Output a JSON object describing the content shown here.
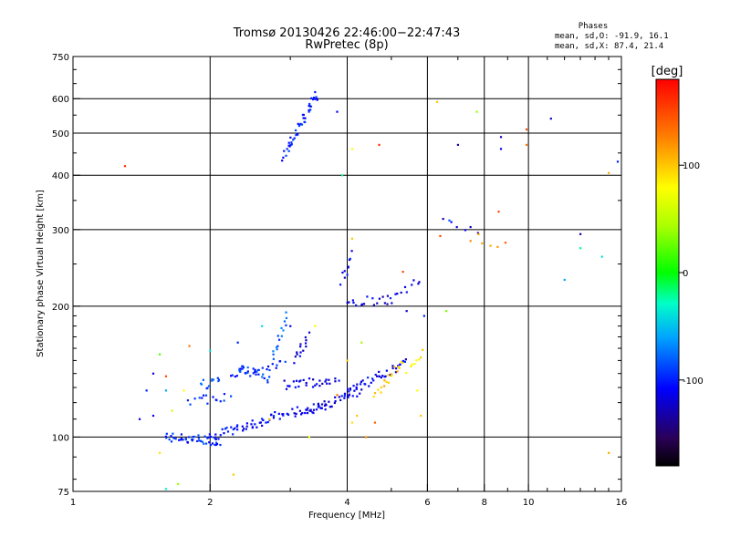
{
  "chart_data": {
    "type": "scatter",
    "title": "Tromsø 20130426 22:46:00−22:47:43",
    "subtitle": "RwPretec (8p)",
    "xlabel": "Frequency [MHz]",
    "ylabel": "Stationary phase Virtual Height [km]",
    "x_scale": "log",
    "y_scale": "log",
    "xlim": [
      1,
      16
    ],
    "ylim": [
      75,
      750
    ],
    "x_ticks": [
      1,
      2,
      4,
      6,
      8,
      10,
      16
    ],
    "x_tick_labels": [
      "1",
      "2",
      "4",
      "6",
      "8",
      "10",
      "16"
    ],
    "y_ticks": [
      75,
      100,
      200,
      300,
      400,
      500,
      600,
      750
    ],
    "y_tick_labels": [
      "75",
      "100",
      "200",
      "300",
      "400",
      "500",
      "600",
      "750"
    ],
    "grid": true,
    "legend": {
      "heading": "Phases",
      "line1": "mean, sd,O:  -91.9, 16.1",
      "line2": "mean, sd,X:  87.4, 21.4"
    },
    "colorbar": {
      "label": "[deg]",
      "min": -180,
      "max": 180,
      "ticks": [
        100,
        0,
        -100
      ],
      "tick_labels": [
        "100",
        "0",
        "-100"
      ]
    },
    "traces": [
      {
        "x_start": 1.6,
        "x_end": 2.1,
        "y_start": 100,
        "y_end": 98,
        "phase": -95,
        "n": 45
      },
      {
        "x_start": 2.0,
        "x_end": 2.7,
        "y_start": 100,
        "y_end": 110,
        "phase": -105,
        "n": 40
      },
      {
        "x_start": 2.7,
        "x_end": 3.6,
        "y_start": 111,
        "y_end": 118,
        "phase": -110,
        "n": 35
      },
      {
        "x_start": 3.3,
        "x_end": 4.3,
        "y_start": 115,
        "y_end": 128,
        "phase": -115,
        "n": 35
      },
      {
        "x_start": 4.0,
        "x_end": 5.4,
        "y_start": 128,
        "y_end": 148,
        "phase": -110,
        "n": 40
      },
      {
        "x_start": 2.2,
        "x_end": 2.9,
        "y_start": 140,
        "y_end": 148,
        "phase": -100,
        "n": 25
      },
      {
        "x_start": 2.9,
        "x_end": 3.8,
        "y_start": 132,
        "y_end": 135,
        "phase": -115,
        "n": 30
      },
      {
        "x_start": 2.3,
        "x_end": 2.7,
        "y_start": 145,
        "y_end": 135,
        "phase": -90,
        "n": 20
      },
      {
        "x_start": 1.8,
        "x_end": 2.2,
        "y_start": 120,
        "y_end": 125,
        "phase": -95,
        "n": 15
      },
      {
        "x_start": 1.9,
        "x_end": 2.1,
        "y_start": 132,
        "y_end": 134,
        "phase": -85,
        "n": 12
      },
      {
        "x_start": 2.75,
        "x_end": 2.95,
        "y_start": 152,
        "y_end": 190,
        "phase": -80,
        "n": 15
      },
      {
        "x_start": 3.05,
        "x_end": 3.3,
        "y_start": 150,
        "y_end": 170,
        "phase": -115,
        "n": 14
      },
      {
        "x_start": 2.9,
        "x_end": 3.45,
        "y_start": 440,
        "y_end": 620,
        "phase": -100,
        "n": 45
      },
      {
        "x_start": 4.0,
        "x_end": 5.0,
        "y_start": 205,
        "y_end": 207,
        "phase": -115,
        "n": 18
      },
      {
        "x_start": 5.0,
        "x_end": 5.8,
        "y_start": 212,
        "y_end": 228,
        "phase": -110,
        "n": 10
      },
      {
        "x_start": 3.9,
        "x_end": 4.1,
        "y_start": 225,
        "y_end": 265,
        "phase": -110,
        "n": 10
      },
      {
        "x_start": 4.6,
        "x_end": 5.3,
        "y_start": 125,
        "y_end": 150,
        "phase": 100,
        "n": 18
      },
      {
        "x_start": 5.4,
        "x_end": 5.9,
        "y_start": 140,
        "y_end": 158,
        "phase": 85,
        "n": 8
      },
      {
        "x_start": 6.5,
        "x_end": 7.8,
        "y_start": 310,
        "y_end": 300,
        "phase": -120,
        "n": 6
      },
      {
        "x_start": 7.5,
        "x_end": 8.5,
        "y_start": 288,
        "y_end": 280,
        "phase": 110,
        "n": 5
      }
    ],
    "points": [
      {
        "x": 1.3,
        "y": 420,
        "phase": 160
      },
      {
        "x": 3.8,
        "y": 560,
        "phase": -110
      },
      {
        "x": 3.9,
        "y": 400,
        "phase": -20
      },
      {
        "x": 4.7,
        "y": 470,
        "phase": 160
      },
      {
        "x": 4.1,
        "y": 460,
        "phase": 80
      },
      {
        "x": 7.0,
        "y": 470,
        "phase": -130
      },
      {
        "x": 7.7,
        "y": 560,
        "phase": 40
      },
      {
        "x": 8.7,
        "y": 490,
        "phase": -130
      },
      {
        "x": 8.7,
        "y": 460,
        "phase": -110
      },
      {
        "x": 9.9,
        "y": 510,
        "phase": 150
      },
      {
        "x": 9.9,
        "y": 470,
        "phase": 130
      },
      {
        "x": 11.2,
        "y": 540,
        "phase": -120
      },
      {
        "x": 15.7,
        "y": 430,
        "phase": -100
      },
      {
        "x": 15.0,
        "y": 405,
        "phase": 110
      },
      {
        "x": 13.0,
        "y": 293,
        "phase": -130
      },
      {
        "x": 13.0,
        "y": 272,
        "phase": -20
      },
      {
        "x": 12.0,
        "y": 230,
        "phase": -60
      },
      {
        "x": 14.5,
        "y": 260,
        "phase": -40
      },
      {
        "x": 6.7,
        "y": 315,
        "phase": -80
      },
      {
        "x": 8.6,
        "y": 330,
        "phase": 150
      },
      {
        "x": 8.9,
        "y": 280,
        "phase": 140
      },
      {
        "x": 6.4,
        "y": 290,
        "phase": 150
      },
      {
        "x": 6.3,
        "y": 590,
        "phase": 100
      },
      {
        "x": 4.1,
        "y": 286,
        "phase": 100
      },
      {
        "x": 6.6,
        "y": 195,
        "phase": 30
      },
      {
        "x": 5.3,
        "y": 240,
        "phase": 150
      },
      {
        "x": 5.9,
        "y": 190,
        "phase": -100
      },
      {
        "x": 5.4,
        "y": 195,
        "phase": -120
      },
      {
        "x": 3.4,
        "y": 180,
        "phase": 80
      },
      {
        "x": 3.0,
        "y": 180,
        "phase": -110
      },
      {
        "x": 2.6,
        "y": 180,
        "phase": -40
      },
      {
        "x": 2.3,
        "y": 165,
        "phase": -100
      },
      {
        "x": 2.0,
        "y": 158,
        "phase": -40
      },
      {
        "x": 1.8,
        "y": 162,
        "phase": 130
      },
      {
        "x": 1.55,
        "y": 155,
        "phase": 20
      },
      {
        "x": 1.5,
        "y": 140,
        "phase": -120
      },
      {
        "x": 1.6,
        "y": 138,
        "phase": 150
      },
      {
        "x": 1.75,
        "y": 128,
        "phase": 80
      },
      {
        "x": 1.45,
        "y": 128,
        "phase": -100
      },
      {
        "x": 1.6,
        "y": 128,
        "phase": -60
      },
      {
        "x": 1.5,
        "y": 112,
        "phase": -110
      },
      {
        "x": 1.65,
        "y": 115,
        "phase": 60
      },
      {
        "x": 1.4,
        "y": 110,
        "phase": -120
      },
      {
        "x": 1.55,
        "y": 92,
        "phase": 90
      },
      {
        "x": 1.7,
        "y": 78,
        "phase": 40
      },
      {
        "x": 1.6,
        "y": 76,
        "phase": -30
      },
      {
        "x": 2.25,
        "y": 82,
        "phase": 100
      },
      {
        "x": 2.7,
        "y": 110,
        "phase": 100
      },
      {
        "x": 3.3,
        "y": 100,
        "phase": 70
      },
      {
        "x": 4.1,
        "y": 108,
        "phase": 90
      },
      {
        "x": 4.4,
        "y": 100,
        "phase": 120
      },
      {
        "x": 4.6,
        "y": 108,
        "phase": 140
      },
      {
        "x": 4.2,
        "y": 112,
        "phase": 100
      },
      {
        "x": 5.8,
        "y": 112,
        "phase": 100
      },
      {
        "x": 3.8,
        "y": 125,
        "phase": 130
      },
      {
        "x": 4.0,
        "y": 150,
        "phase": 100
      },
      {
        "x": 4.3,
        "y": 165,
        "phase": 40
      },
      {
        "x": 5.7,
        "y": 128,
        "phase": 80
      },
      {
        "x": 15.0,
        "y": 92,
        "phase": 110
      }
    ]
  }
}
